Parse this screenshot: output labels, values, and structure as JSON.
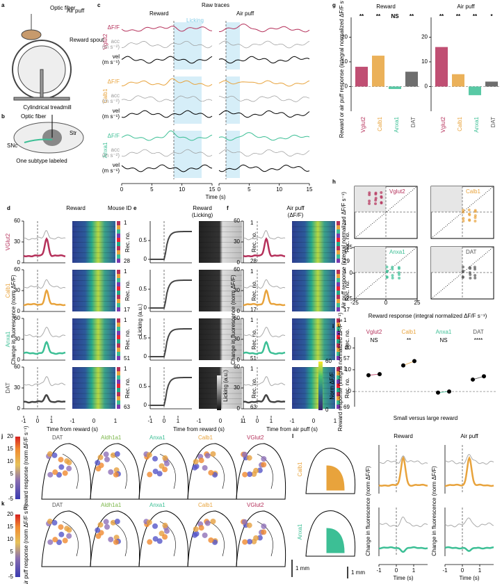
{
  "a": {
    "letter": "a",
    "labels": [
      "Optic fiber",
      "Air puff",
      "Reward spout",
      "Cylindrical treadmill"
    ]
  },
  "b": {
    "letter": "b",
    "labels": [
      "Optic fiber",
      "Str",
      "SNc",
      "One subtype labeled"
    ]
  },
  "c": {
    "letter": "c",
    "title": "Raw traces",
    "events": [
      "Reward",
      "Licking",
      "Air puff"
    ],
    "rows": [
      "Vglut2",
      "Calb1",
      "Anxa1"
    ],
    "traces": [
      "ΔF/F",
      "acc",
      "(m s⁻²)",
      "vel",
      "(m s⁻¹)"
    ],
    "xticks": [
      0,
      5,
      10,
      15
    ],
    "xlabel": "Time (s)"
  },
  "d": {
    "letter": "d",
    "title": "Reward",
    "mouse": "Mouse ID",
    "rows": [
      "VGlut2",
      "Calb1",
      "Anxa1",
      "DAT"
    ],
    "first": 1,
    "counts": [
      28,
      17,
      51,
      63
    ],
    "rec": "Rec. no.",
    "yticks": [
      0,
      30,
      60
    ],
    "ylabel": "Change in fluorescence (norm ΔF/F)",
    "xticks": [
      -1,
      0,
      1
    ],
    "xlabel": "Time from reward (s)",
    "cbar_label": "Norm ΔF/F",
    "cbar_ticks": [
      0,
      60
    ]
  },
  "e": {
    "letter": "e",
    "title": "Reward",
    "subtitle": "(Licking)",
    "counts": [
      28,
      17,
      51,
      63
    ],
    "yticks": [
      0,
      0.5
    ],
    "ylabel": "Licking (a.u.)",
    "xticks": [
      -1,
      0,
      1
    ],
    "xlabel": "Time from reward (s)",
    "cbar_label": "Licking (a.u.)"
  },
  "f": {
    "letter": "f",
    "title": "Air puff",
    "subtitle": "(ΔF/F)",
    "counts": [
      29,
      17,
      57,
      69
    ],
    "xticks": [
      -1,
      0,
      1
    ],
    "xlabel": "Time from air puff (s)",
    "ylabel": "Change in fluorescence (norm ΔF/F)",
    "cbar_label": "Norm ΔF/F",
    "cbar_ticks": [
      0,
      60
    ]
  },
  "g": {
    "letter": "g",
    "categories": [
      "Vglut2",
      "Calb1",
      "Anxa1",
      "DAT"
    ],
    "colors": [
      "#b5305a",
      "#e8a33c",
      "#3cbf95",
      "#555555"
    ],
    "ylim": [
      -10,
      28
    ],
    "yticks": [
      0,
      10,
      20
    ],
    "ylabel": "Reward or air puff response (integral normalized ΔF/F s⁻¹)",
    "groups": [
      {
        "title": "Reward",
        "sig": [
          "**",
          "**",
          "NS",
          "**"
        ],
        "values": [
          8,
          12.5,
          -1,
          6
        ]
      },
      {
        "title": "Air puff",
        "sig": [
          "**",
          "**",
          "**",
          "*"
        ],
        "values": [
          16,
          5,
          -3.5,
          2
        ]
      }
    ]
  },
  "h": {
    "letter": "h",
    "titles": [
      "Vglut2",
      "Calb1",
      "Anxa1",
      "DAT"
    ],
    "ticks": [
      -25,
      0,
      25
    ],
    "ylabel": "Air puff response (integral normalized ΔF/F s⁻¹)",
    "xlabel": "Reward response (integral normalized ΔF/F s⁻¹)"
  },
  "i": {
    "letter": "i",
    "categories": [
      "Vglut2",
      "Calb1",
      "Anxa1",
      "DAT"
    ],
    "sig": [
      "NS",
      "**",
      "NS",
      "****"
    ],
    "small": [
      7.5,
      12,
      -0.5,
      5.5
    ],
    "large": [
      8,
      14,
      0,
      7
    ],
    "ylim": [
      -7,
      25
    ],
    "yticks": [
      0,
      10,
      20
    ],
    "ylabel": "Reward response (integral normalized ΔF/F s⁻¹)",
    "xlabel": "Small versus large reward"
  },
  "j": {
    "letter": "j",
    "labels": [
      "DAT",
      "Aldh1a1",
      "Anxa1",
      "Calb1",
      "VGlut2"
    ],
    "cbar_ticks": [
      -5,
      0,
      5,
      10,
      15,
      20
    ],
    "cbar_label": "Reward response (norm ΔF/F s⁻¹)"
  },
  "k": {
    "letter": "k",
    "labels": [
      "DAT",
      "Aldh1a1",
      "Anxa1",
      "Calb1",
      "VGlut2"
    ],
    "cbar_ticks": [
      -5,
      0,
      5,
      10,
      15,
      20
    ],
    "cbar_label": "Air puff response (norm ΔF/F s⁻¹)",
    "scale": "1 mm"
  },
  "l": {
    "letter": "l",
    "rows": [
      "Calb1",
      "Anxa1"
    ],
    "titles": [
      "Reward",
      "Air puff"
    ],
    "ylabel": "Change in fluorescence (norm ΔF/F)",
    "xticks": [
      -1,
      0,
      1
    ],
    "xlabel": "Time (s)",
    "scale": "1 mm"
  }
}
